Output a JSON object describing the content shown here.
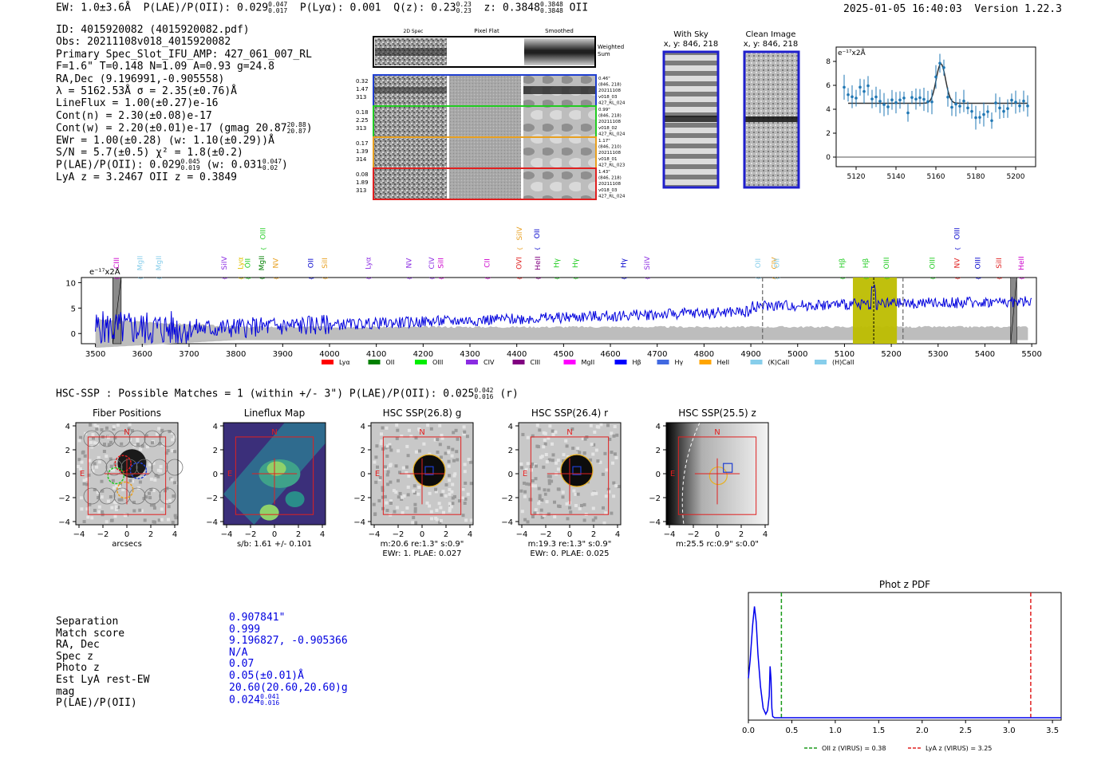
{
  "header": {
    "ew": "EW: 1.0±3.6Å",
    "plae_label": "P(LAE)/P(OII): 0.029",
    "plae_hi": "0.047",
    "plae_lo": "0.017",
    "plya": "P(Lyα): 0.001",
    "qz_label": "Q(z): 0.23",
    "qz_hi": "0.23",
    "qz_lo": "0.23",
    "z_label": "z: 0.3848",
    "z_hi": "0.3848",
    "z_lo": "0.3848",
    "z_line": "OII",
    "datetime": "2025-01-05 16:40:03",
    "version": "Version 1.22.3"
  },
  "info": {
    "id": "ID: 4015920082 (4015920082.pdf)",
    "obs": "Obs: 20211108v018_4015920082",
    "primary": "Primary Spec_Slot_IFU_AMP: 427_061_007_RL",
    "params": "F=1.6\"  T=0.148  N=1.09  A=0.93  g=24.8",
    "radec": "RA,Dec (9.196991,-0.905558)",
    "lambda": "λ = 5162.53Å   σ = 2.35(±0.76)Å",
    "lineflux": "LineFlux = 1.00(±0.27)e-16",
    "contn": "Cont(n) = 2.30(±0.08)e-17",
    "contw": "Cont(w) = 2.20(±0.01)e-17 (gmag 20.87",
    "contw_hi": "20.88",
    "contw_lo": "20.87",
    "ewr": "EWr = 1.00(±0.28) (w: 1.10(±0.29))Å",
    "sn": "S/N = 5.7(±0.5)  χ² = 1.8(±0.2)",
    "plae": "P(LAE)/P(OII): 0.029",
    "plae_hi": "0.045",
    "plae_lo": "0.019",
    "plae_w": "(w: 0.031",
    "plae_w_hi": "0.047",
    "plae_w_lo": "0.02",
    "lya_z": "LyA z = 3.2467   OII z = 0.3849"
  },
  "stamps": {
    "col_titles": [
      "2D Spec",
      "Pixel Flat",
      "Smoothed"
    ],
    "weighted_sum": [
      "Weighted",
      "Sum"
    ],
    "rows": [
      {
        "left": [
          "0.32",
          "1.47",
          "313"
        ],
        "right": [
          "0.46\"",
          "(846, 218)",
          "20211108",
          "v018_03",
          "427_RL_024"
        ],
        "color": "#1f3fd0"
      },
      {
        "left": [
          "0.18",
          "2.25",
          "313"
        ],
        "right": [
          "0.99\"",
          "(846, 218)",
          "20211108",
          "v018_02",
          "427_RL_024"
        ],
        "color": "#22cc22"
      },
      {
        "left": [
          "0.17",
          "1.39",
          "314"
        ],
        "right": [
          "1.17\"",
          "(846, 210)",
          "20211108",
          "v018_01",
          "427_RL_023"
        ],
        "color": "#e8a020"
      },
      {
        "left": [
          "0.08",
          "1.89",
          "313"
        ],
        "right": [
          "1.43\"",
          "(846, 218)",
          "20211108",
          "v018_03",
          "427_RL_024"
        ],
        "color": "#e02020"
      }
    ]
  },
  "sky_panels": [
    {
      "title": "With Sky",
      "coords": "x, y: 846, 218"
    },
    {
      "title": "Clean Image",
      "coords": "x, y: 846, 218"
    }
  ],
  "zoom_chart": {
    "type": "scatter",
    "ylabel": "e⁻¹⁷x2Å",
    "xlim": [
      5110,
      5210
    ],
    "ylim": [
      -0.8,
      9.2
    ],
    "xticks": [
      "5120",
      "5140",
      "5160",
      "5180",
      "5200"
    ],
    "yticks": [
      "0",
      "2",
      "4",
      "6",
      "8"
    ]
  },
  "chart_data": {
    "type": "line",
    "title": "",
    "ylabel": "e⁻¹⁷x2Å",
    "xlim": [
      3470,
      5510
    ],
    "ylim": [
      -2,
      11
    ],
    "xticks": [
      "3500",
      "3600",
      "3700",
      "3800",
      "3900",
      "4000",
      "4100",
      "4200",
      "4300",
      "4400",
      "4500",
      "4600",
      "4700",
      "4800",
      "4900",
      "5000",
      "5100",
      "5200",
      "5300",
      "5400",
      "5500"
    ],
    "yticks": [
      "0",
      "5",
      "10"
    ],
    "highlight_range": [
      5118,
      5212
    ],
    "detected_wavelength": 5162.5,
    "dashed_lines": [
      4925,
      5225
    ],
    "hatched_ranges": [
      [
        3537,
        3555
      ],
      [
        5455,
        5468
      ]
    ],
    "line_labels": [
      {
        "name": "CIII",
        "x": 3545,
        "color": "#cc00cc",
        "tier": 0
      },
      {
        "name": "MgII",
        "x": 3595,
        "color": "#87ceeb",
        "tier": 1
      },
      {
        "name": "MgII",
        "x": 3635,
        "color": "#87ceeb",
        "tier": 1
      },
      {
        "name": "SiIV",
        "x": 3775,
        "color": "#8a2be2",
        "tier": 1
      },
      {
        "name": "Lyα",
        "x": 3810,
        "color": "#e0c000",
        "tier": 1
      },
      {
        "name": "OII",
        "x": 3825,
        "color": "#22cc22",
        "tier": 1
      },
      {
        "name": "MgII",
        "x": 3855,
        "color": "#008000",
        "tier": 1
      },
      {
        "name": "OIII",
        "x": 3858,
        "color": "#22cc22",
        "tier": 2
      },
      {
        "name": "NV",
        "x": 3885,
        "color": "#e8a020",
        "tier": 1
      },
      {
        "name": "OII",
        "x": 3960,
        "color": "#0000cc",
        "tier": 1
      },
      {
        "name": "SiII",
        "x": 3990,
        "color": "#e8a020",
        "tier": 1
      },
      {
        "name": "Lyα",
        "x": 4083,
        "color": "#8a2be2",
        "tier": 1
      },
      {
        "name": "NV",
        "x": 4170,
        "color": "#8a2be2",
        "tier": 1
      },
      {
        "name": "CIV",
        "x": 4218,
        "color": "#8a2be2",
        "tier": 1
      },
      {
        "name": "SiII",
        "x": 4238,
        "color": "#cc00cc",
        "tier": 1
      },
      {
        "name": "CII",
        "x": 4337,
        "color": "#cc00cc",
        "tier": 1
      },
      {
        "name": "OVI",
        "x": 4405,
        "color": "#e02020",
        "tier": 1
      },
      {
        "name": "SiIV",
        "x": 4406,
        "color": "#e8a020",
        "tier": 2
      },
      {
        "name": "OII",
        "x": 4443,
        "color": "#0000cc",
        "tier": 2
      },
      {
        "name": "HeII",
        "x": 4445,
        "color": "#800080",
        "tier": 1
      },
      {
        "name": "Hγ",
        "x": 4485,
        "color": "#22cc22",
        "tier": 1
      },
      {
        "name": "Hγ",
        "x": 4525,
        "color": "#22cc22",
        "tier": 1
      },
      {
        "name": "Hγ",
        "x": 4628,
        "color": "#0000cc",
        "tier": 1
      },
      {
        "name": "SiIV",
        "x": 4678,
        "color": "#8a2be2",
        "tier": 1
      },
      {
        "name": "OII",
        "x": 4915,
        "color": "#87ceeb",
        "tier": 1
      },
      {
        "name": "CIV",
        "x": 4950,
        "color": "#e8a020",
        "tier": 1
      },
      {
        "name": "OII",
        "x": 4955,
        "color": "#87ceeb",
        "tier": 1
      },
      {
        "name": "Hβ",
        "x": 5095,
        "color": "#22cc22",
        "tier": 1
      },
      {
        "name": "Hβ",
        "x": 5145,
        "color": "#22cc22",
        "tier": 1
      },
      {
        "name": "OIII",
        "x": 5190,
        "color": "#22cc22",
        "tier": 1
      },
      {
        "name": "OIII",
        "x": 5288,
        "color": "#22cc22",
        "tier": 1
      },
      {
        "name": "NV",
        "x": 5340,
        "color": "#e02020",
        "tier": 1
      },
      {
        "name": "OIII",
        "x": 5340,
        "color": "#0000cc",
        "tier": 2
      },
      {
        "name": "OIII",
        "x": 5385,
        "color": "#0000cc",
        "tier": 1
      },
      {
        "name": "SiII",
        "x": 5430,
        "color": "#e02020",
        "tier": 1
      },
      {
        "name": "HeII",
        "x": 5478,
        "color": "#cc00cc",
        "tier": 1
      }
    ],
    "legend": [
      {
        "name": "Lyα",
        "color": "#ff0000"
      },
      {
        "name": "OII",
        "color": "#008000"
      },
      {
        "name": "OIII",
        "color": "#00ee00"
      },
      {
        "name": "CIV",
        "color": "#8a2be2"
      },
      {
        "name": "CIII",
        "color": "#800080"
      },
      {
        "name": "MgII",
        "color": "#ff00ff"
      },
      {
        "name": "Hβ",
        "color": "#0000ff"
      },
      {
        "name": "Hγ",
        "color": "#4169e1"
      },
      {
        "name": "HeII",
        "color": "#ffa500"
      },
      {
        "name": "(K)CaII",
        "color": "#87ceeb"
      },
      {
        "name": "(H)CaII",
        "color": "#87ceeb"
      }
    ]
  },
  "hsc_line": {
    "text": "HSC-SSP : Possible Matches = 1 (within +/- 3\")  P(LAE)/P(OII): 0.025",
    "hi": "0.042",
    "lo": "0.016",
    "band": "(r)"
  },
  "cutouts": [
    {
      "title": "Fiber Positions",
      "caption": "arcsecs",
      "caption2": ""
    },
    {
      "title": "Lineflux Map",
      "caption": "s/b: 1.61 +/- 0.101",
      "caption2": ""
    },
    {
      "title": "HSC SSP(26.8) g",
      "caption": "m:20.6  re:1.3\"  s:0.9\"",
      "caption2": "EWr: 1. PLAE: 0.027"
    },
    {
      "title": "HSC SSP(26.4) r",
      "caption": "m:19.3  re:1.3\"  s:0.9\"",
      "caption2": "EWr: 0. PLAE: 0.025"
    },
    {
      "title": "HSC SSP(25.5) z",
      "caption": "m:25.5 rc:0.9\"  s:0.0\"",
      "caption2": ""
    }
  ],
  "cutout_axis": {
    "ticks": [
      "−4",
      "−2",
      "0",
      "2",
      "4"
    ],
    "north": "N",
    "east": "E"
  },
  "match": {
    "labels": [
      "Separation",
      "Match score",
      "RA, Dec",
      "Spec z",
      "Photo z",
      "Est LyA rest-EW",
      "mag",
      "P(LAE)/P(OII)"
    ],
    "values": [
      "0.907841\"",
      "0.999",
      "9.196827, -0.905366",
      "N/A",
      "0.07",
      "0.05(±0.01)Å",
      "20.60(20.60,20.60)g",
      "0.024"
    ],
    "plae_hi": "0.041",
    "plae_lo": "0.016"
  },
  "photz": {
    "title": "Phot z PDF",
    "xlim": [
      0,
      3.6
    ],
    "xticks": [
      "0.0",
      "0.5",
      "1.0",
      "1.5",
      "2.0",
      "2.5",
      "3.0",
      "3.5"
    ],
    "oii_z": 0.38,
    "lya_z": 3.25,
    "legend_oii": "OII z (VIRUS) = 0.38",
    "legend_lya": "LyA z (VIRUS) = 3.25",
    "pdf_x": [
      0.0,
      0.02,
      0.05,
      0.07,
      0.09,
      0.11,
      0.14,
      0.17,
      0.2,
      0.22,
      0.24,
      0.25,
      0.26,
      0.27,
      0.28,
      0.3,
      0.35,
      0.5,
      1.0,
      2.0,
      3.0,
      3.6
    ],
    "pdf_y": [
      0.35,
      0.5,
      0.8,
      0.95,
      0.82,
      0.55,
      0.28,
      0.1,
      0.05,
      0.08,
      0.2,
      0.45,
      0.35,
      0.1,
      0.03,
      0.02,
      0.02,
      0.02,
      0.02,
      0.02,
      0.02,
      0.02
    ]
  }
}
